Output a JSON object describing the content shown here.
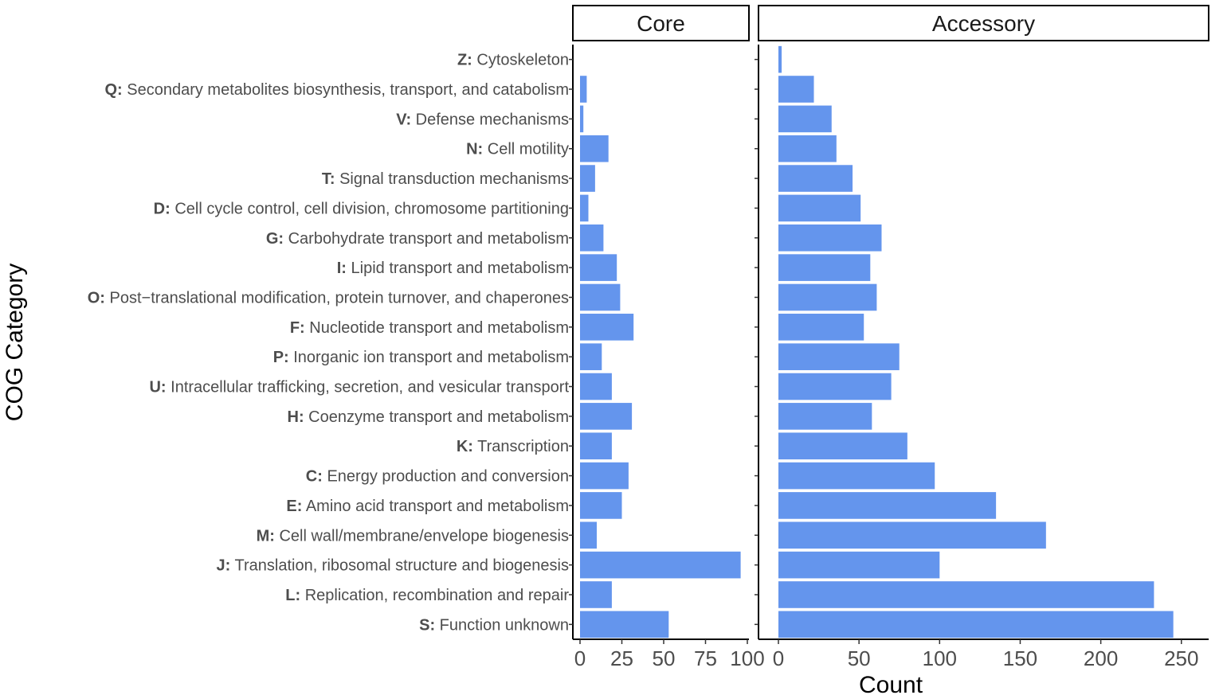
{
  "chart_data": {
    "type": "bar",
    "orientation": "horizontal",
    "xlabel": "Count",
    "ylabel": "COG Category",
    "bar_color": "#6495ED",
    "categories": [
      {
        "code": "Z:",
        "desc": "Cytoskeleton"
      },
      {
        "code": "Q:",
        "desc": "Secondary metabolites biosynthesis, transport, and catabolism"
      },
      {
        "code": "V:",
        "desc": "Defense mechanisms"
      },
      {
        "code": "N:",
        "desc": "Cell motility"
      },
      {
        "code": "T:",
        "desc": "Signal transduction mechanisms"
      },
      {
        "code": "D:",
        "desc": "Cell cycle control, cell division, chromosome partitioning"
      },
      {
        "code": "G:",
        "desc": "Carbohydrate transport and metabolism"
      },
      {
        "code": "I:",
        "desc": "Lipid transport and metabolism"
      },
      {
        "code": "O:",
        "desc": "Post−translational modification, protein turnover, and chaperones"
      },
      {
        "code": "F:",
        "desc": "Nucleotide transport and metabolism"
      },
      {
        "code": "P:",
        "desc": "Inorganic ion transport and metabolism"
      },
      {
        "code": "U:",
        "desc": "Intracellular trafficking, secretion, and vesicular transport"
      },
      {
        "code": "H:",
        "desc": "Coenzyme transport and metabolism"
      },
      {
        "code": "K:",
        "desc": "Transcription"
      },
      {
        "code": "C:",
        "desc": "Energy production and conversion"
      },
      {
        "code": "E:",
        "desc": "Amino acid transport and metabolism"
      },
      {
        "code": "M:",
        "desc": "Cell wall/membrane/envelope biogenesis"
      },
      {
        "code": "J:",
        "desc": "Translation, ribosomal structure and biogenesis"
      },
      {
        "code": "L:",
        "desc": "Replication, recombination and repair"
      },
      {
        "code": "S:",
        "desc": "Function unknown"
      }
    ],
    "panels": [
      {
        "name": "Core",
        "xlim": [
          0,
          100
        ],
        "ticks": [
          "0",
          "25",
          "50",
          "75",
          "100"
        ],
        "values": [
          0,
          4,
          2,
          17,
          9,
          5,
          14,
          22,
          24,
          32,
          13,
          19,
          31,
          19,
          29,
          25,
          10,
          96,
          19,
          53
        ]
      },
      {
        "name": "Accessory",
        "xlim": [
          0,
          260
        ],
        "ticks": [
          "0",
          "50",
          "100",
          "150",
          "200",
          "250"
        ],
        "values": [
          2,
          22,
          33,
          36,
          46,
          51,
          64,
          57,
          61,
          53,
          75,
          70,
          58,
          80,
          97,
          135,
          166,
          100,
          233,
          245
        ]
      }
    ]
  }
}
